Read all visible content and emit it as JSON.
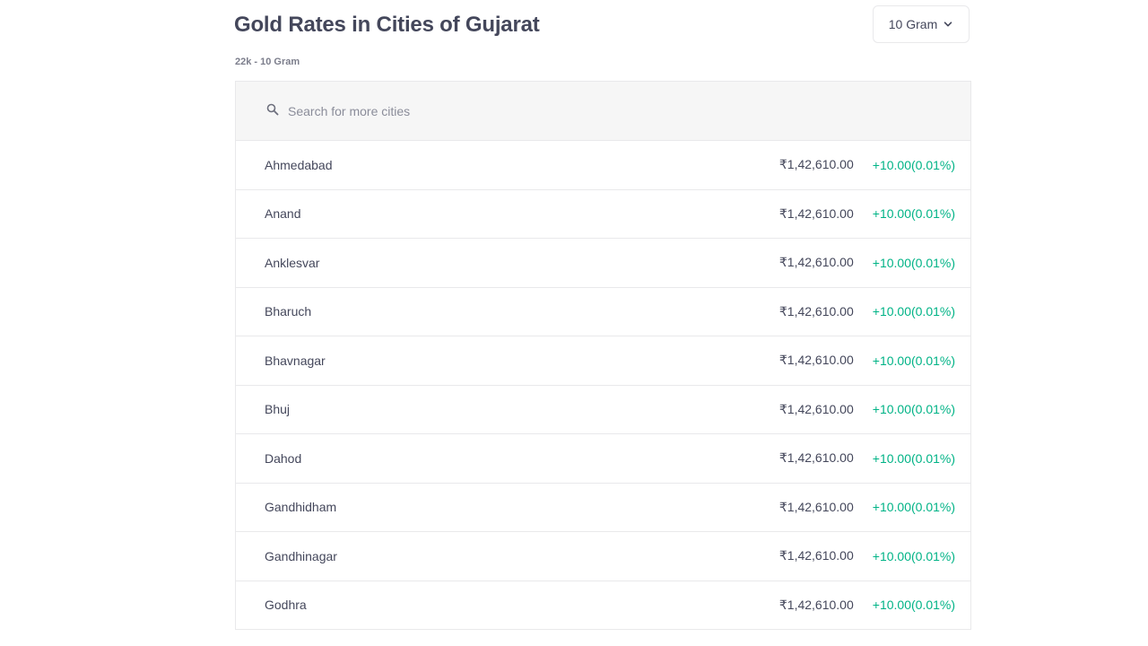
{
  "header": {
    "title": "Gold Rates in Cities of Gujarat",
    "subtitle": "22k - 10 Gram",
    "unit_select": {
      "selected": "10 Gram",
      "icon": "chevron-down-icon"
    }
  },
  "search": {
    "placeholder": "Search for more cities",
    "value": "",
    "icon": "search-icon"
  },
  "colors": {
    "positive": "#00b386",
    "text": "#44475b",
    "border": "#e9e9eb",
    "search_bg": "#f6f6f6"
  },
  "rows": [
    {
      "city": "Ahmedabad",
      "price": "₹1,42,610.00",
      "change": "+10.00(0.01%)"
    },
    {
      "city": "Anand",
      "price": "₹1,42,610.00",
      "change": "+10.00(0.01%)"
    },
    {
      "city": "Anklesvar",
      "price": "₹1,42,610.00",
      "change": "+10.00(0.01%)"
    },
    {
      "city": "Bharuch",
      "price": "₹1,42,610.00",
      "change": "+10.00(0.01%)"
    },
    {
      "city": "Bhavnagar",
      "price": "₹1,42,610.00",
      "change": "+10.00(0.01%)"
    },
    {
      "city": "Bhuj",
      "price": "₹1,42,610.00",
      "change": "+10.00(0.01%)"
    },
    {
      "city": "Dahod",
      "price": "₹1,42,610.00",
      "change": "+10.00(0.01%)"
    },
    {
      "city": "Gandhidham",
      "price": "₹1,42,610.00",
      "change": "+10.00(0.01%)"
    },
    {
      "city": "Gandhinagar",
      "price": "₹1,42,610.00",
      "change": "+10.00(0.01%)"
    },
    {
      "city": "Godhra",
      "price": "₹1,42,610.00",
      "change": "+10.00(0.01%)"
    }
  ]
}
